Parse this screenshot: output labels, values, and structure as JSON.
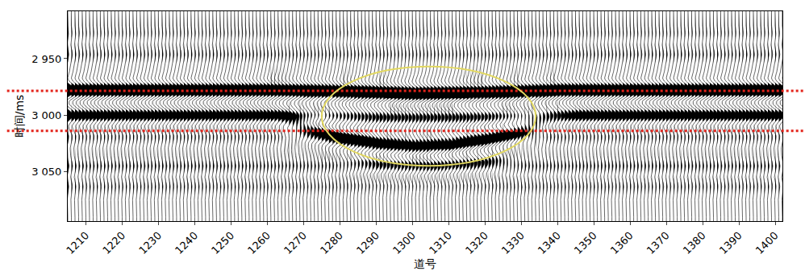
{
  "chart_data": {
    "type": "seismic_wiggle",
    "x_label": "道号",
    "y_label": "时间/ms",
    "xlim": [
      1205,
      1402
    ],
    "xticks": [
      1210,
      1220,
      1230,
      1240,
      1250,
      1260,
      1270,
      1280,
      1290,
      1300,
      1310,
      1320,
      1330,
      1340,
      1350,
      1360,
      1370,
      1380,
      1390,
      1400
    ],
    "ylim": [
      3094,
      2908
    ],
    "yticks": [
      {
        "value": 2950,
        "label": "2 950"
      },
      {
        "value": 3000,
        "label": "3 000"
      },
      {
        "value": 3050,
        "label": "3 050"
      }
    ],
    "color": "#000000",
    "events": [
      {
        "traces": [
          1203,
          1260,
          1280,
          1300,
          1320,
          1340,
          1404
        ],
        "times": [
          2978,
          2978,
          2979,
          2981,
          2980,
          2978,
          2978
        ],
        "amplitudes": [
          1,
          1,
          1,
          1.1,
          1,
          1,
          1
        ]
      },
      {
        "traces": [
          1203,
          1265,
          1275,
          1290,
          1320,
          1335,
          1345,
          1404
        ],
        "times": [
          3000,
          3000,
          3001,
          3002,
          3002,
          3001,
          3000,
          3000
        ],
        "amplitudes": [
          0.7,
          0.7,
          0.3,
          0.5,
          0.5,
          0.3,
          0.7,
          0.7
        ]
      },
      {
        "traces": [
          1262,
          1270,
          1280,
          1290,
          1300,
          1310,
          1320,
          1330,
          1338
        ],
        "times": [
          3003,
          3012,
          3021,
          3026,
          3028,
          3027,
          3022,
          3014,
          3006
        ],
        "amplitudes": [
          0,
          0.5,
          0.8,
          0.9,
          0.9,
          0.9,
          0.8,
          0.5,
          0
        ]
      },
      {
        "traces": [
          1278,
          1290,
          1305,
          1320,
          1330
        ],
        "times": [
          3036,
          3042,
          3044,
          3040,
          3034
        ],
        "amplitudes": [
          0,
          0.4,
          0.45,
          0.4,
          0
        ]
      },
      {
        "traces": [
          1203,
          1404
        ],
        "times": [
          2928,
          2928
        ],
        "amplitudes": [
          0.12,
          0.12
        ]
      },
      {
        "traces": [
          1203,
          1404
        ],
        "times": [
          2945,
          2945
        ],
        "amplitudes": [
          0.15,
          0.15
        ]
      },
      {
        "traces": [
          1203,
          1404
        ],
        "times": [
          3018,
          3018
        ],
        "amplitudes": [
          0.2,
          0.2
        ]
      },
      {
        "traces": [
          1203,
          1404
        ],
        "times": [
          3045,
          3045
        ],
        "amplitudes": [
          0.18,
          0.18
        ]
      },
      {
        "traces": [
          1203,
          1404
        ],
        "times": [
          3062,
          3062
        ],
        "amplitudes": [
          0.15,
          0.15
        ]
      }
    ],
    "reference_lines": [
      {
        "y": 2978.5,
        "color": "#e3231b",
        "line_style": "dot"
      },
      {
        "y": 3014,
        "color": "#e3231b",
        "line_style": "dot"
      }
    ],
    "ellipse": {
      "x": [
        1275,
        1334
      ],
      "y": [
        2957,
        3045
      ],
      "color": "#e2d860"
    }
  }
}
